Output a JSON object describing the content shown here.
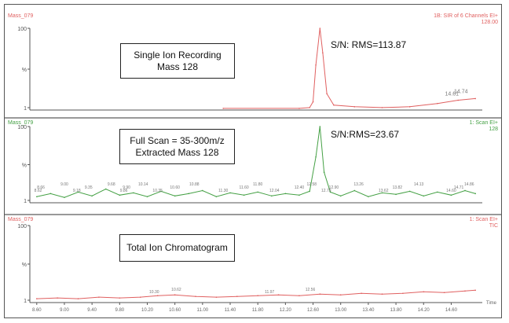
{
  "chart_data": [
    {
      "type": "line",
      "title": "",
      "xlabel": "",
      "ylabel": "",
      "ylim": [
        0,
        100
      ],
      "xlim": [
        8.5,
        15.05
      ],
      "yticks": [
        "100",
        "%",
        "1"
      ],
      "color": "#e06060",
      "header_left": "Mass_079",
      "header_right": [
        "1B: SIR of 6 Channels EI+",
        "128.00"
      ],
      "box_lines": [
        "Single Ion Recording",
        "Mass 128"
      ],
      "sn_label": "S/N: RMS=113.87",
      "x": [
        11.3,
        12.4,
        12.55,
        12.6,
        12.64,
        12.7,
        12.74,
        12.8,
        12.9,
        13.2,
        13.6,
        14.0,
        14.4,
        14.7,
        14.95
      ],
      "y": [
        2,
        2,
        3,
        10,
        55,
        100,
        70,
        20,
        6,
        4,
        3,
        4,
        8,
        12,
        14
      ],
      "peak_labels": [
        {
          "x": 14.61,
          "text": "14.61"
        },
        {
          "x": 14.74,
          "text": "14.74"
        }
      ]
    },
    {
      "type": "line",
      "title": "",
      "xlabel": "",
      "ylabel": "",
      "ylim": [
        0,
        100
      ],
      "xlim": [
        8.5,
        15.05
      ],
      "yticks": [
        "100",
        "%",
        "1"
      ],
      "color": "#44a044",
      "header_left": "Mass_079",
      "header_right": [
        "1: Scan EI+",
        "128"
      ],
      "box_lines": [
        "Full Scan = 35-300m/z",
        "Extracted Mass 128"
      ],
      "sn_label": "S/N:RMS=23.67",
      "x": [
        8.6,
        8.8,
        9.0,
        9.2,
        9.4,
        9.6,
        9.8,
        10.0,
        10.2,
        10.4,
        10.6,
        10.8,
        11.0,
        11.2,
        11.4,
        11.6,
        11.8,
        12.0,
        12.2,
        12.4,
        12.55,
        12.64,
        12.7,
        12.76,
        12.85,
        13.0,
        13.2,
        13.4,
        13.6,
        13.8,
        14.0,
        14.2,
        14.4,
        14.6,
        14.8,
        14.95
      ],
      "y": [
        8,
        12,
        7,
        14,
        9,
        18,
        10,
        13,
        8,
        15,
        9,
        12,
        16,
        8,
        13,
        10,
        14,
        9,
        12,
        10,
        15,
        60,
        100,
        40,
        14,
        9,
        16,
        8,
        13,
        11,
        15,
        9,
        14,
        10,
        16,
        12
      ],
      "peak_labels": [
        {
          "x": 8.62,
          "text": "8.62"
        },
        {
          "x": 8.66,
          "text": "8.66"
        },
        {
          "x": 9.0,
          "text": "9.00"
        },
        {
          "x": 9.18,
          "text": "9.18"
        },
        {
          "x": 9.35,
          "text": "9.35"
        },
        {
          "x": 9.68,
          "text": "9.68"
        },
        {
          "x": 9.86,
          "text": "9.86"
        },
        {
          "x": 9.9,
          "text": "9.90"
        },
        {
          "x": 10.14,
          "text": "10.14"
        },
        {
          "x": 10.35,
          "text": "10.35"
        },
        {
          "x": 10.6,
          "text": "10.60"
        },
        {
          "x": 10.88,
          "text": "10.88"
        },
        {
          "x": 11.3,
          "text": "11.30"
        },
        {
          "x": 11.6,
          "text": "11.60"
        },
        {
          "x": 11.8,
          "text": "11.80"
        },
        {
          "x": 12.04,
          "text": "12.04"
        },
        {
          "x": 12.4,
          "text": "12.40"
        },
        {
          "x": 12.58,
          "text": "12.58"
        },
        {
          "x": 12.79,
          "text": "12.79"
        },
        {
          "x": 12.9,
          "text": "12.90"
        },
        {
          "x": 13.26,
          "text": "13.26"
        },
        {
          "x": 13.62,
          "text": "13.62"
        },
        {
          "x": 13.82,
          "text": "13.82"
        },
        {
          "x": 14.13,
          "text": "14.13"
        },
        {
          "x": 14.6,
          "text": "14.60"
        },
        {
          "x": 14.71,
          "text": "14.71"
        },
        {
          "x": 14.86,
          "text": "14.86"
        }
      ]
    },
    {
      "type": "line",
      "title": "",
      "xlabel": "Time",
      "ylabel": "",
      "ylim": [
        0,
        100
      ],
      "xlim": [
        8.5,
        15.05
      ],
      "yticks": [
        "100",
        "%",
        "1"
      ],
      "xticks": [
        8.6,
        9.0,
        9.4,
        9.8,
        10.2,
        10.6,
        11.0,
        11.4,
        11.8,
        12.2,
        12.6,
        13.0,
        13.4,
        13.8,
        14.2,
        14.6
      ],
      "color": "#e06060",
      "header_left": "Mass_079",
      "header_right": [
        "1: Scan EI+",
        "TIC"
      ],
      "box_lines": [
        "Total Ion Chromatogram"
      ],
      "x": [
        8.6,
        8.9,
        9.2,
        9.5,
        9.8,
        10.1,
        10.35,
        10.6,
        10.9,
        11.2,
        11.5,
        11.8,
        12.1,
        12.4,
        12.7,
        13.0,
        13.3,
        13.6,
        13.9,
        14.2,
        14.5,
        14.8,
        14.95
      ],
      "y": [
        5,
        6,
        5,
        7,
        6,
        7,
        9,
        10,
        8,
        7,
        8,
        9,
        10,
        9,
        11,
        10,
        12,
        11,
        12,
        14,
        13,
        15,
        16
      ],
      "peak_labels": [
        {
          "x": 10.3,
          "text": "10.30"
        },
        {
          "x": 10.62,
          "text": "10.62"
        },
        {
          "x": 11.97,
          "text": "11.97"
        },
        {
          "x": 12.56,
          "text": "12.56"
        }
      ]
    }
  ]
}
